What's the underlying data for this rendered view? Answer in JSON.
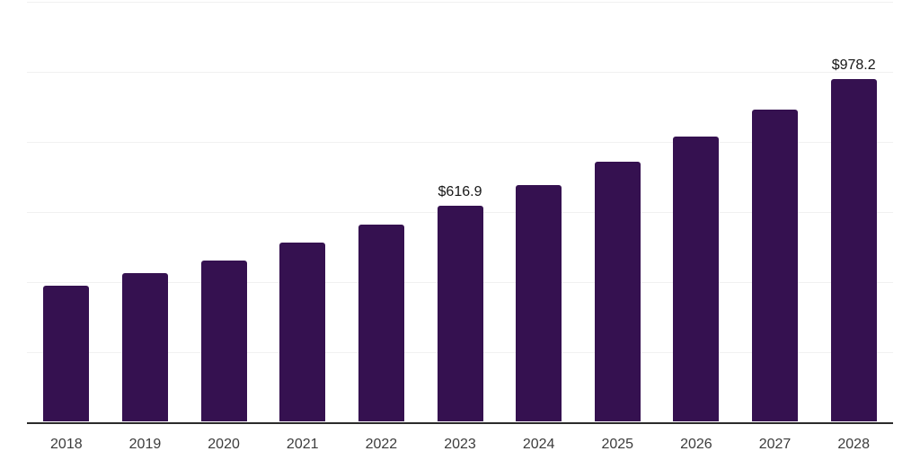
{
  "chart": {
    "background_color": "#ffffff",
    "bar_color": "#351150",
    "gridline_color": "#f1f1f1",
    "axis_line_color": "#2b2b2b",
    "tick_label_color": "#3c3c3c",
    "data_label_color": "#161616"
  },
  "chart_data": {
    "type": "bar",
    "title": "",
    "xlabel": "",
    "ylabel": "",
    "categories": [
      "2018",
      "2019",
      "2020",
      "2021",
      "2022",
      "2023",
      "2024",
      "2025",
      "2026",
      "2027",
      "2028"
    ],
    "values": [
      389,
      426,
      461,
      512,
      563,
      616.9,
      676,
      743,
      816,
      893,
      978.2
    ],
    "data_labels": [
      {
        "category_index": 5,
        "category": "2023",
        "text": "$616.9"
      },
      {
        "category_index": 10,
        "category": "2028",
        "text": "$978.2"
      }
    ],
    "ylim": [
      0,
      1200
    ],
    "gridline_step": 200,
    "grid": "horizontal-only",
    "legend_position": "none",
    "y_axis_tick_labels_shown": false,
    "value_prefix": "$"
  }
}
